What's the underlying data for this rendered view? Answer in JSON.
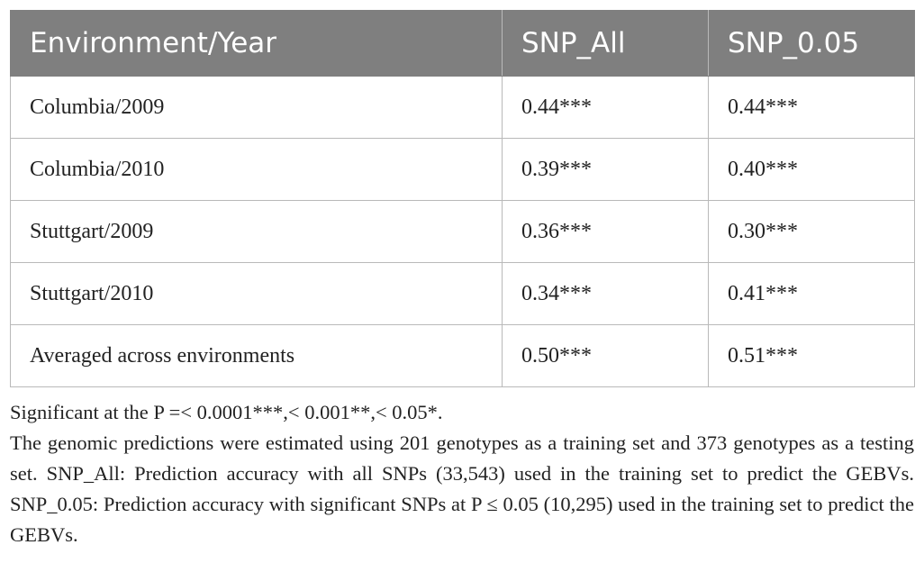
{
  "table": {
    "headers": [
      "Environment/Year",
      "SNP_All",
      "SNP_0.05"
    ],
    "rows": [
      [
        "Columbia/2009",
        "0.44***",
        "0.44***"
      ],
      [
        "Columbia/2010",
        "0.39***",
        "0.40***"
      ],
      [
        "Stuttgart/2009",
        "0.36***",
        "0.30***"
      ],
      [
        "Stuttgart/2010",
        "0.34***",
        "0.41***"
      ],
      [
        "Averaged across environments",
        "0.50***",
        "0.51***"
      ]
    ]
  },
  "footnotes": {
    "significance": "Significant at the P =< 0.0001***,< 0.001**,< 0.05*.",
    "description": "The genomic predictions were estimated using 201 genotypes as a training set and 373 genotypes as a testing set. SNP_All: Prediction accuracy with all SNPs (33,543) used in the training set to predict the GEBVs. SNP_0.05: Prediction accuracy with significant SNPs at P ≤ 0.05 (10,295) used in the training set to predict the GEBVs."
  }
}
